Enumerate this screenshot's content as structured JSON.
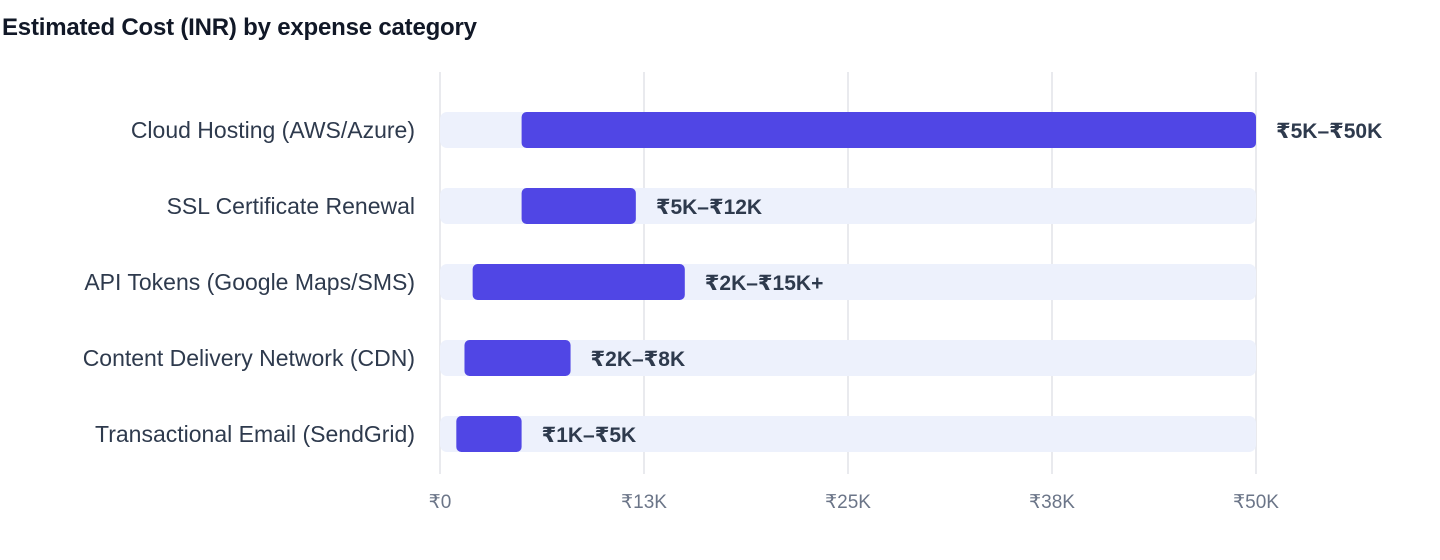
{
  "title": "Estimated Cost (INR) by expense category",
  "colors": {
    "bar": "#5046e5",
    "track": "#edf1fc",
    "grid": "#e2e4e9",
    "label": "#2e3a4d",
    "tick": "#6b7588"
  },
  "chart_data": {
    "type": "bar",
    "orientation": "horizontal",
    "title": "Estimated Cost (INR) by expense category",
    "xlabel": "",
    "ylabel": "",
    "xlim": [
      0,
      50000
    ],
    "grid": true,
    "ticks": [
      {
        "value": 0,
        "label": "₹0"
      },
      {
        "value": 12500,
        "label": "₹13K"
      },
      {
        "value": 25000,
        "label": "₹25K"
      },
      {
        "value": 37500,
        "label": "₹38K"
      },
      {
        "value": 50000,
        "label": "₹50K"
      }
    ],
    "categories": [
      "Cloud Hosting (AWS/Azure)",
      "SSL Certificate Renewal",
      "API Tokens (Google Maps/SMS)",
      "Content Delivery Network (CDN)",
      "Transactional Email (SendGrid)"
    ],
    "ranges": [
      {
        "min": 5000,
        "max": 50000,
        "label": "₹5K–₹50K"
      },
      {
        "min": 5000,
        "max": 12000,
        "label": "₹5K–₹12K"
      },
      {
        "min": 2000,
        "max": 15000,
        "label": "₹2K–₹15K+"
      },
      {
        "min": 1500,
        "max": 8000,
        "label": "₹2K–₹8K"
      },
      {
        "min": 1000,
        "max": 5000,
        "label": "₹1K–₹5K"
      }
    ]
  }
}
